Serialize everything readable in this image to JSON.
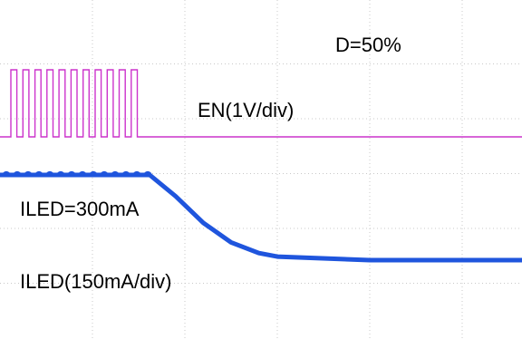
{
  "chart_data": {
    "type": "line",
    "annotations": {
      "duty": "D=50%",
      "en_channel": "EN(1V/div)",
      "iled_level": "ILED=300mA",
      "iled_channel": "ILED(150mA/div)"
    },
    "grid": true,
    "colors": {
      "en": "#cc33cc",
      "iled": "#1f55dd",
      "grid": "#c8c8c8"
    },
    "series": [
      {
        "name": "EN(1V/div)",
        "pwm_duty": 0.5,
        "pwm_cycles": 11,
        "pwm_end_x_div": 1.55,
        "high_v": 3.5,
        "low_v": 0
      },
      {
        "name": "ILED(150mA/div)",
        "x_div": [
          0,
          1.62,
          1.9,
          2.2,
          2.5,
          2.8,
          3.0,
          4.0,
          5.8
        ],
        "ma": [
          300,
          300,
          240,
          165,
          110,
          80,
          70,
          60,
          60
        ]
      }
    ]
  }
}
